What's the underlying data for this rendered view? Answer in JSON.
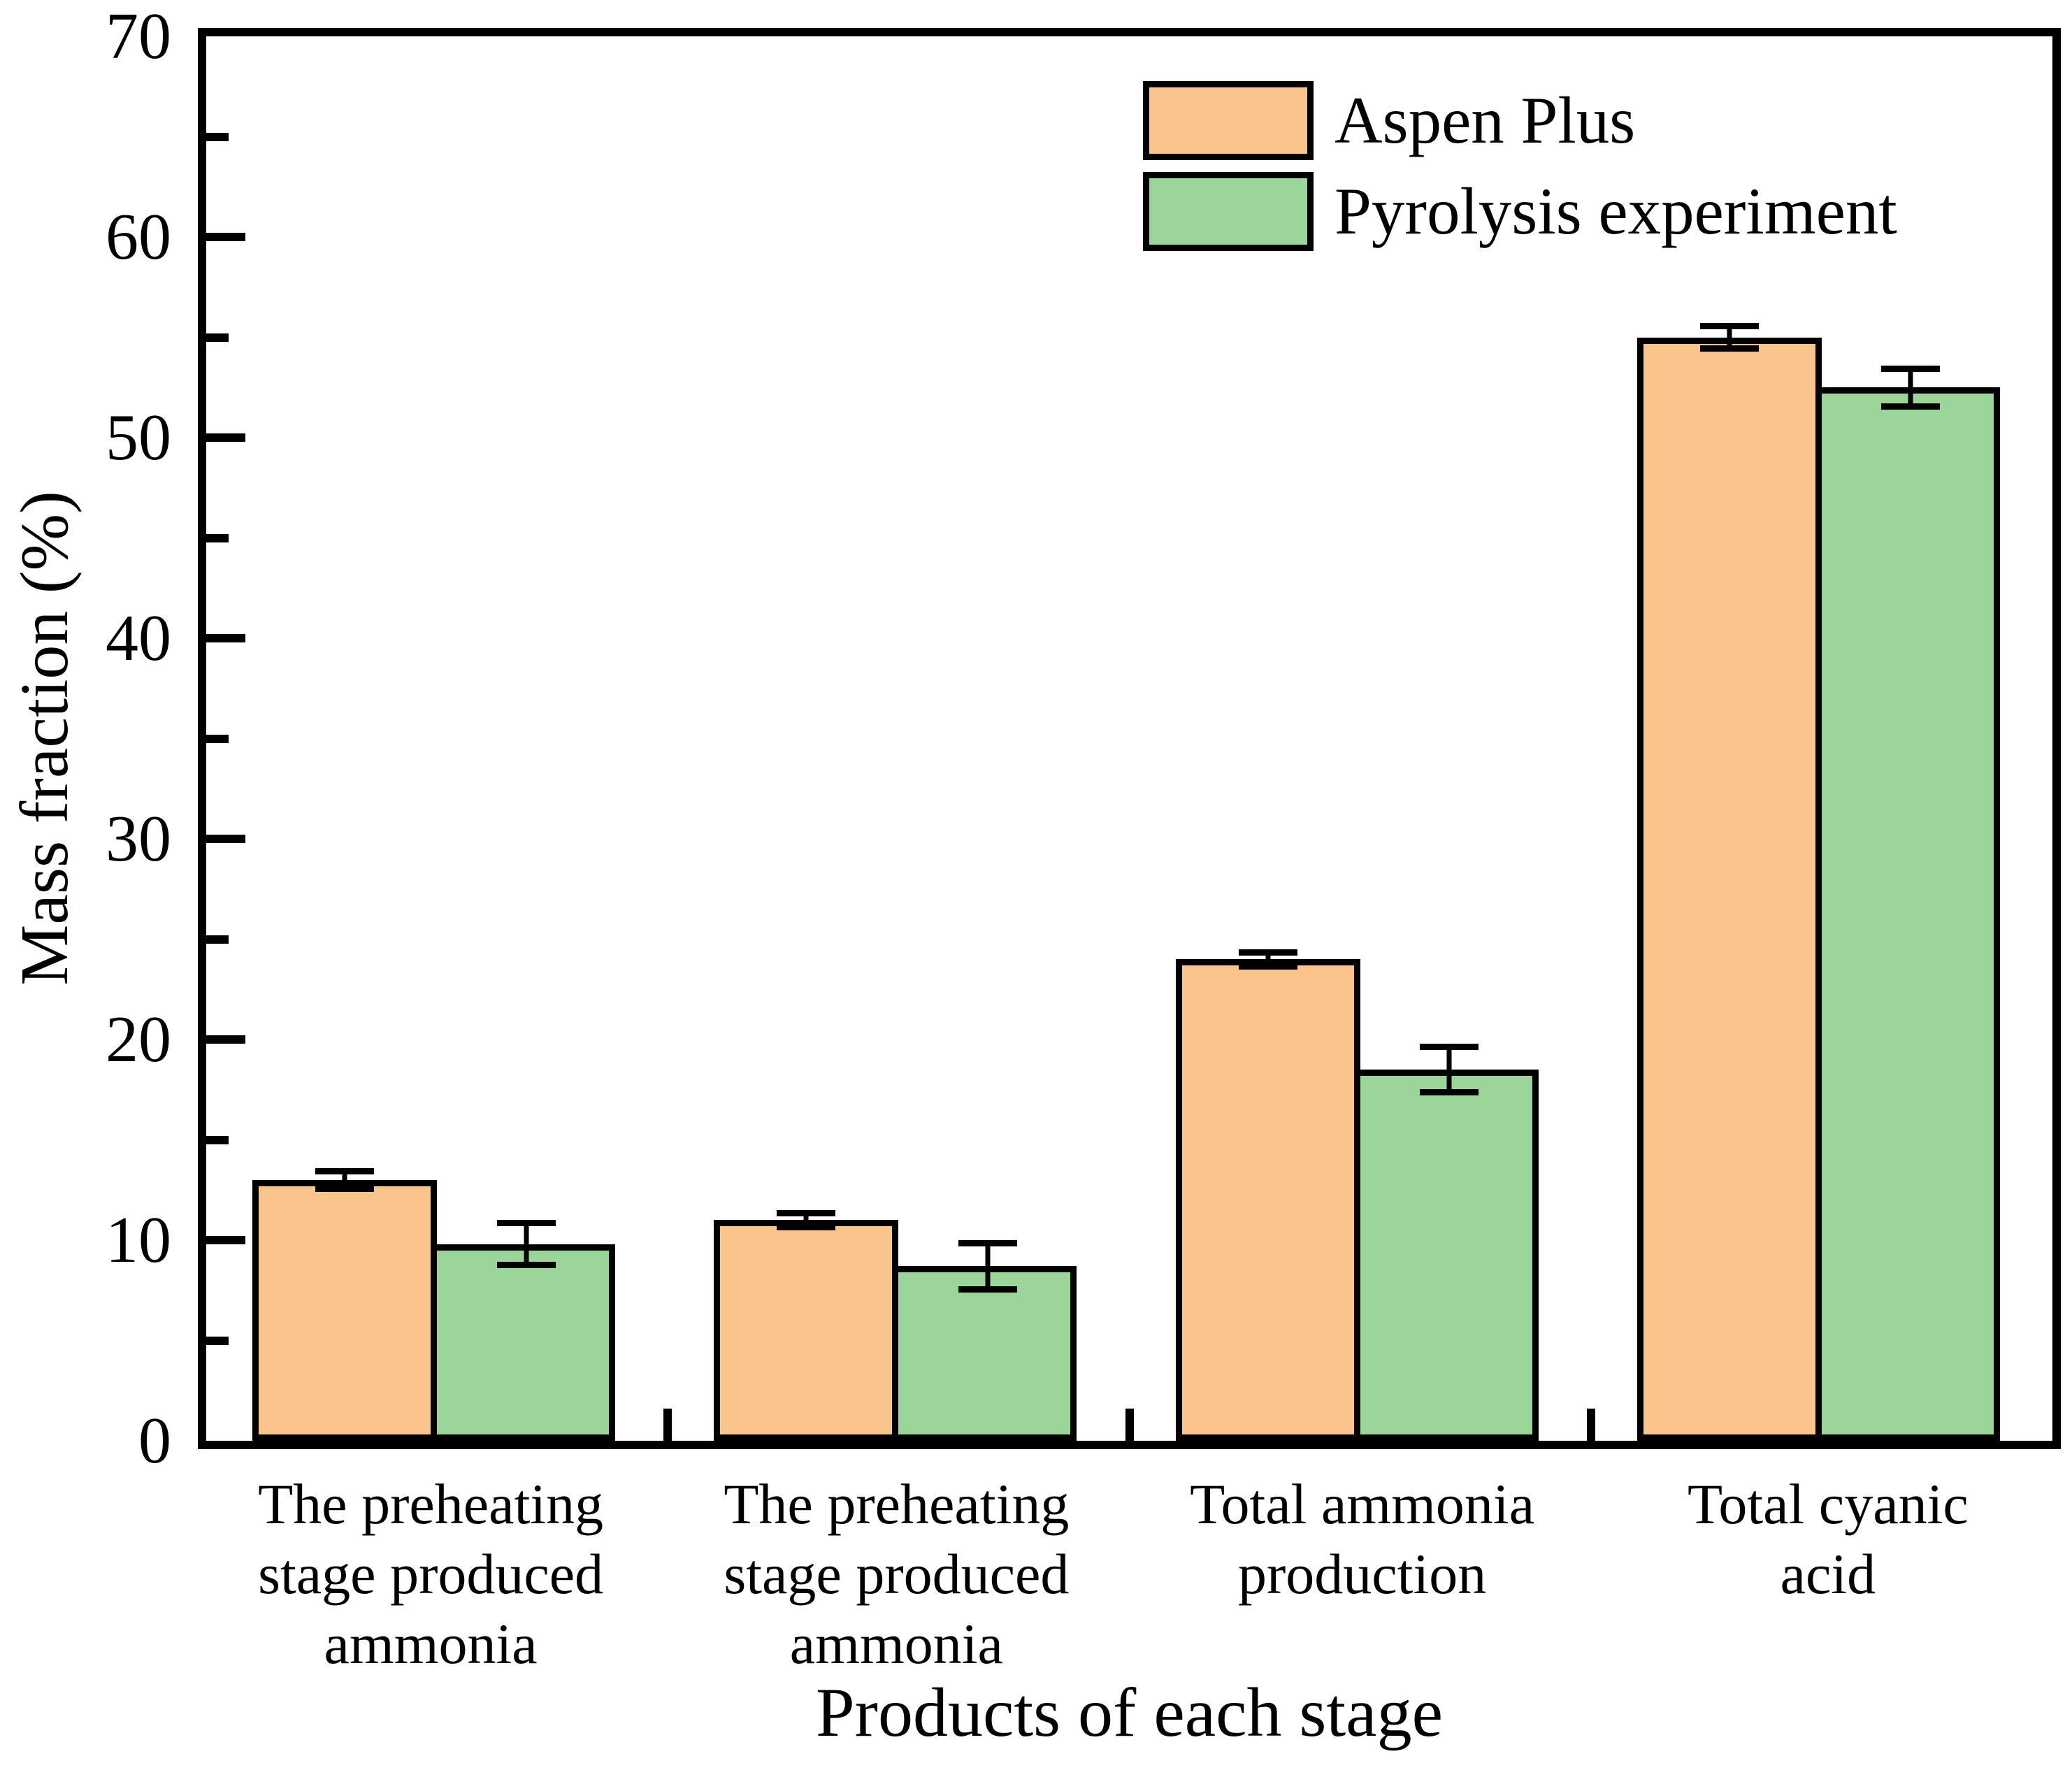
{
  "figure": {
    "background": "#ffffff",
    "frame_color": "#000000",
    "text_color": "#000000"
  },
  "chart_data": {
    "type": "bar",
    "title": "",
    "xlabel": "Products of each stage",
    "ylabel": "Mass fraction (%)",
    "ylim": [
      0,
      70
    ],
    "y_major_step": 10,
    "y_minor_step": 5,
    "y_major_tick_labels": [
      "0",
      "10",
      "20",
      "30",
      "40",
      "50",
      "60",
      "70"
    ],
    "grid": false,
    "legend_position": "top-right-inside",
    "categories": [
      "The preheating stage produced ammonia",
      "The preheating stage produced ammonia",
      "Total ammonia production",
      "Total cyanic acid"
    ],
    "categories_lines": [
      [
        "The preheating",
        "stage produced",
        "ammonia"
      ],
      [
        "The preheating",
        "stage produced",
        "ammonia"
      ],
      [
        "Total ammonia",
        "production"
      ],
      [
        "Total cyanic",
        "acid"
      ]
    ],
    "series": [
      {
        "name": "Aspen Plus",
        "color": "#FAC58D",
        "values": [
          13.0,
          11.0,
          24.0,
          55.0
        ],
        "errors": [
          0.6,
          0.5,
          0.5,
          0.7
        ]
      },
      {
        "name": "Pyrolysis experiment",
        "color": "#9CD59A",
        "values": [
          9.8,
          8.7,
          18.5,
          52.5
        ],
        "errors": [
          1.2,
          1.3,
          1.3,
          1.1
        ]
      }
    ]
  }
}
